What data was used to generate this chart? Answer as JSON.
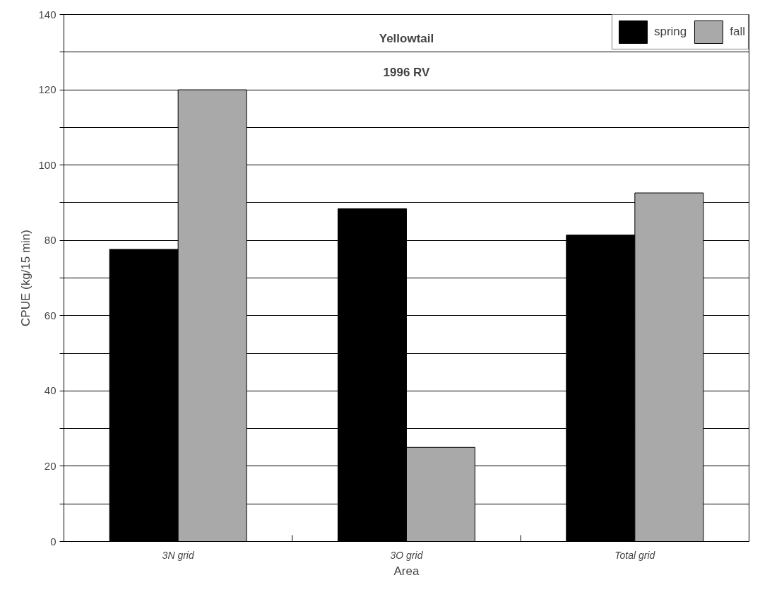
{
  "chart_data": {
    "type": "bar",
    "title": "Yellowtail",
    "subtitle": "1996 RV",
    "xlabel": "Area",
    "ylabel": "CPUE (kg/15 min)",
    "categories": [
      "3N grid",
      "3O grid",
      "Total grid"
    ],
    "series": [
      {
        "name": "spring",
        "color": "#000000",
        "values": [
          77.6,
          88.4,
          81.4
        ]
      },
      {
        "name": "fall",
        "color": "#a9a9a9",
        "values": [
          120,
          25,
          92.6
        ]
      }
    ],
    "ylim": [
      0,
      140
    ],
    "yticks": [
      0,
      {
        "value": 10,
        "label": null
      },
      20,
      {
        "value": 30,
        "label": null
      },
      40,
      {
        "value": 50,
        "label": null
      },
      60,
      {
        "value": 70,
        "label": null
      },
      80,
      {
        "value": 90,
        "label": null
      },
      100,
      {
        "value": 110,
        "label": null
      },
      120,
      {
        "value": 130,
        "label": null
      },
      140
    ],
    "grid": "y",
    "legend": "top right"
  }
}
